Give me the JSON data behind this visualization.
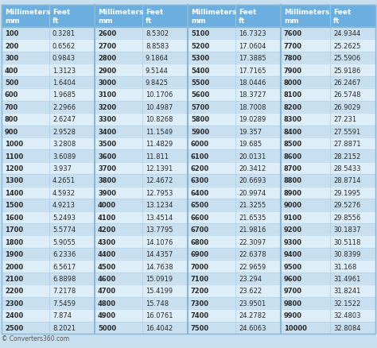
{
  "header": [
    "Millimeters\nmm",
    "Feet\nft",
    "Millimeters\nmm",
    "Feet\nft",
    "Millimeters\nmm",
    "Feet\nft",
    "Millimeters\nmm",
    "Feet\nft"
  ],
  "rows": [
    [
      "100",
      "0.3281",
      "2600",
      "8.5302",
      "5100",
      "16.7323",
      "7600",
      "24.9344"
    ],
    [
      "200",
      "0.6562",
      "2700",
      "8.8583",
      "5200",
      "17.0604",
      "7700",
      "25.2625"
    ],
    [
      "300",
      "0.9843",
      "2800",
      "9.1864",
      "5300",
      "17.3885",
      "7800",
      "25.5906"
    ],
    [
      "400",
      "1.3123",
      "2900",
      "9.5144",
      "5400",
      "17.7165",
      "7900",
      "25.9186"
    ],
    [
      "500",
      "1.6404",
      "3000",
      "9.8425",
      "5500",
      "18.0446",
      "8000",
      "26.2467"
    ],
    [
      "600",
      "1.9685",
      "3100",
      "10.1706",
      "5600",
      "18.3727",
      "8100",
      "26.5748"
    ],
    [
      "700",
      "2.2966",
      "3200",
      "10.4987",
      "5700",
      "18.7008",
      "8200",
      "26.9029"
    ],
    [
      "800",
      "2.6247",
      "3300",
      "10.8268",
      "5800",
      "19.0289",
      "8300",
      "27.231"
    ],
    [
      "900",
      "2.9528",
      "3400",
      "11.1549",
      "5900",
      "19.357",
      "8400",
      "27.5591"
    ],
    [
      "1000",
      "3.2808",
      "3500",
      "11.4829",
      "6000",
      "19.685",
      "8500",
      "27.8871"
    ],
    [
      "1100",
      "3.6089",
      "3600",
      "11.811",
      "6100",
      "20.0131",
      "8600",
      "28.2152"
    ],
    [
      "1200",
      "3.937",
      "3700",
      "12.1391",
      "6200",
      "20.3412",
      "8700",
      "28.5433"
    ],
    [
      "1300",
      "4.2651",
      "3800",
      "12.4672",
      "6300",
      "20.6693",
      "8800",
      "28.8714"
    ],
    [
      "1400",
      "4.5932",
      "3900",
      "12.7953",
      "6400",
      "20.9974",
      "8900",
      "29.1995"
    ],
    [
      "1500",
      "4.9213",
      "4000",
      "13.1234",
      "6500",
      "21.3255",
      "9000",
      "29.5276"
    ],
    [
      "1600",
      "5.2493",
      "4100",
      "13.4514",
      "6600",
      "21.6535",
      "9100",
      "29.8556"
    ],
    [
      "1700",
      "5.5774",
      "4200",
      "13.7795",
      "6700",
      "21.9816",
      "9200",
      "30.1837"
    ],
    [
      "1800",
      "5.9055",
      "4300",
      "14.1076",
      "6800",
      "22.3097",
      "9300",
      "30.5118"
    ],
    [
      "1900",
      "6.2336",
      "4400",
      "14.4357",
      "6900",
      "22.6378",
      "9400",
      "30.8399"
    ],
    [
      "2000",
      "6.5617",
      "4500",
      "14.7638",
      "7000",
      "22.9659",
      "9500",
      "31.168"
    ],
    [
      "2100",
      "6.8898",
      "4600",
      "15.0919",
      "7100",
      "23.294",
      "9600",
      "31.4961"
    ],
    [
      "2200",
      "7.2178",
      "4700",
      "15.4199",
      "7200",
      "23.622",
      "9700",
      "31.8241"
    ],
    [
      "2300",
      "7.5459",
      "4800",
      "15.748",
      "7300",
      "23.9501",
      "9800",
      "32.1522"
    ],
    [
      "2400",
      "7.874",
      "4900",
      "16.0761",
      "7400",
      "24.2782",
      "9900",
      "32.4803"
    ],
    [
      "2500",
      "8.2021",
      "5000",
      "16.4042",
      "7500",
      "24.6063",
      "10000",
      "32.8084"
    ]
  ],
  "header_bg": "#6aafe0",
  "row_bg_light": "#c8dff0",
  "row_bg_white": "#ddeef8",
  "page_bg": "#c8dff0",
  "header_text_color": "#ffffff",
  "row_text_color": "#2a2a2a",
  "footer_text": "© Converters360.com",
  "group_sep_color": "#8ab8d4",
  "row_sep_color": "#b0cfe8",
  "font_size_header": 6.5,
  "font_size_data": 6.0
}
